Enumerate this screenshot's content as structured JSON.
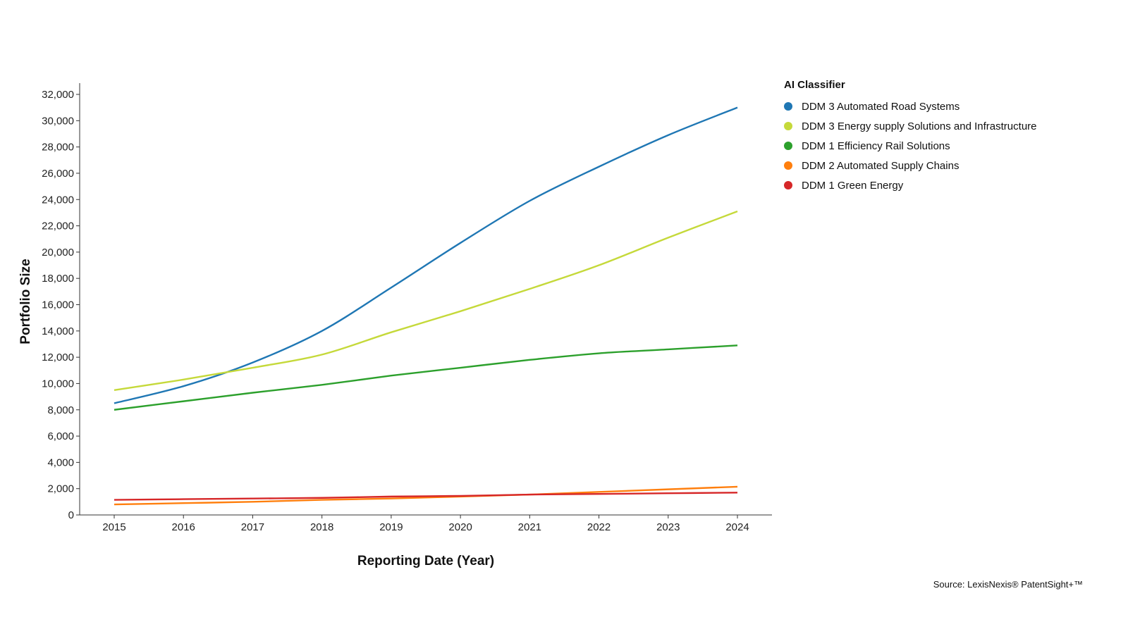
{
  "chart_data": {
    "type": "line",
    "xlabel": "Reporting Date (Year)",
    "ylabel": "Portfolio Size",
    "x": [
      2015,
      2016,
      2017,
      2018,
      2019,
      2020,
      2021,
      2022,
      2023,
      2024
    ],
    "ylim": [
      0,
      32000
    ],
    "yticks": [
      0,
      2000,
      4000,
      6000,
      8000,
      10000,
      12000,
      14000,
      16000,
      18000,
      20000,
      22000,
      24000,
      26000,
      28000,
      30000,
      32000
    ],
    "grid": false,
    "legend_position": "top-right",
    "legend_title": "AI Classifier",
    "series": [
      {
        "name": "DDM 3 Automated Road Systems",
        "color": "#1f77b4",
        "values": [
          8500,
          9800,
          11600,
          14000,
          17300,
          20700,
          23900,
          26500,
          28900,
          31000
        ]
      },
      {
        "name": "DDM 3 Energy supply Solutions and Infrastructure",
        "color": "#c5d93a",
        "values": [
          9500,
          10300,
          11200,
          12200,
          13900,
          15500,
          17200,
          19000,
          21100,
          23100
        ]
      },
      {
        "name": "DDM 1 Efficiency Rail Solutions",
        "color": "#2ca02c",
        "values": [
          8000,
          8650,
          9300,
          9900,
          10600,
          11200,
          11800,
          12300,
          12600,
          12900
        ]
      },
      {
        "name": "DDM 2  Automated Supply Chains",
        "color": "#ff7f0e",
        "values": [
          800,
          900,
          1000,
          1150,
          1250,
          1400,
          1550,
          1750,
          1950,
          2150
        ]
      },
      {
        "name": "DDM 1 Green Energy",
        "color": "#d62728",
        "values": [
          1150,
          1200,
          1250,
          1300,
          1400,
          1450,
          1550,
          1600,
          1650,
          1700
        ]
      }
    ]
  },
  "source": "Source: LexisNexis® PatentSight+™"
}
